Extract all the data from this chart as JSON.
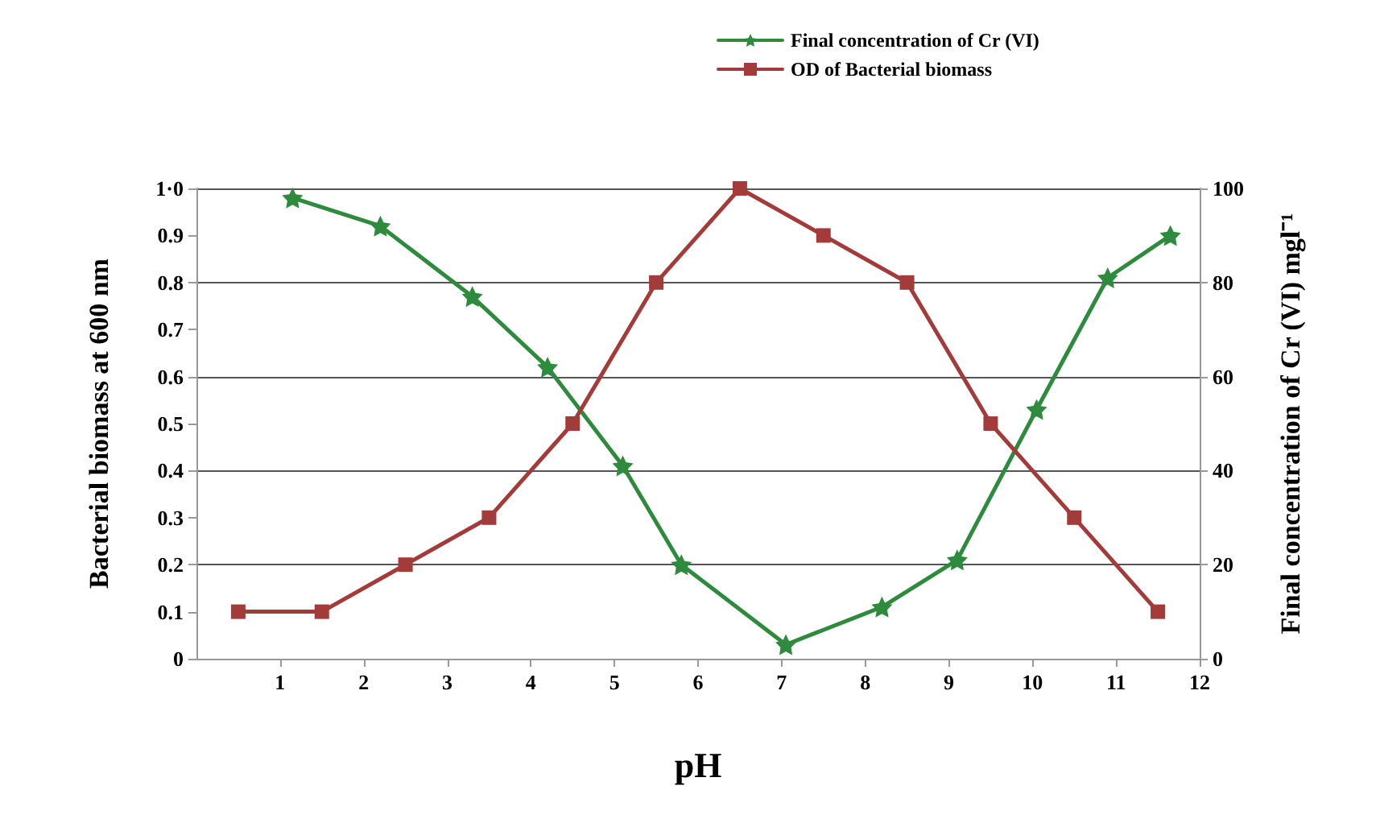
{
  "chart_data": {
    "type": "line",
    "xlabel": "pH",
    "ylabel": "Bacterial biomass at 600 nm",
    "y2label": "Final concentration of Cr (VI) mgl⁻¹",
    "xlim": [
      0,
      12
    ],
    "xticks": [
      1,
      2,
      3,
      4,
      5,
      6,
      7,
      8,
      9,
      10,
      11,
      12
    ],
    "ylim": [
      0,
      1
    ],
    "yticks": [
      0,
      0.1,
      0.2,
      0.3,
      0.4,
      0.5,
      0.6,
      0.7,
      0.8,
      0.9,
      {
        "value": 1,
        "label": "1·0"
      }
    ],
    "y2lim": [
      0,
      100
    ],
    "y2ticks": [
      0,
      20,
      40,
      60,
      80,
      100
    ],
    "grid": "y",
    "legend": "top right",
    "line_style": "solid",
    "series": [
      {
        "name": "Final concentration of Cr (VI)",
        "color": "#2e8b3e",
        "axis": "y2",
        "marker": "star",
        "x": [
          1.15,
          2.2,
          3.3,
          4.2,
          5.1,
          5.8,
          7.05,
          8.2,
          9.1,
          10.05,
          10.9,
          11.65
        ],
        "values": [
          98,
          92,
          77,
          62,
          41,
          20,
          3,
          11,
          21,
          53,
          81,
          90
        ]
      },
      {
        "name": "OD of Bacterial biomass",
        "color": "#a33b3b",
        "axis": "y",
        "marker": "square",
        "x": [
          0.5,
          1.5,
          2.5,
          3.5,
          4.5,
          5.5,
          6.5,
          7.5,
          8.5,
          9.5,
          10.5,
          11.5
        ],
        "values": [
          0.1,
          0.1,
          0.2,
          0.3,
          0.5,
          0.8,
          1.0,
          0.9,
          0.8,
          0.5,
          0.3,
          0.1
        ]
      }
    ]
  }
}
